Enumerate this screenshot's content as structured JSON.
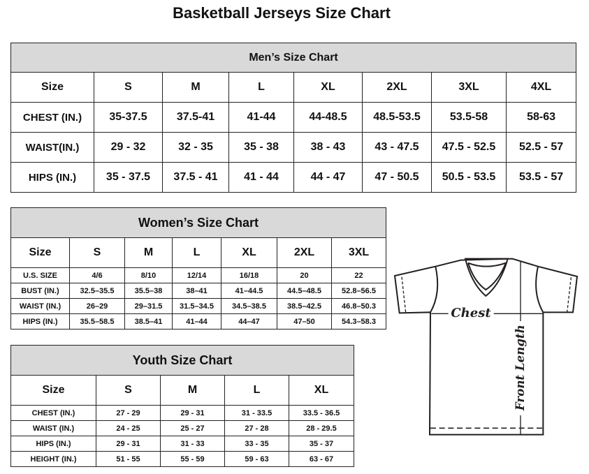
{
  "title": "Basketball Jerseys Size Chart",
  "mens": {
    "heading": "Men’s Size Chart",
    "columns": [
      "Size",
      "S",
      "M",
      "L",
      "XL",
      "2XL",
      "3XL",
      "4XL"
    ],
    "rows": [
      [
        "CHEST (IN.)",
        "35-37.5",
        "37.5-41",
        "41-44",
        "44-48.5",
        "48.5-53.5",
        "53.5-58",
        "58-63"
      ],
      [
        "WAIST(IN.)",
        "29 - 32",
        "32 - 35",
        "35 - 38",
        "38 - 43",
        "43 - 47.5",
        "47.5 - 52.5",
        "52.5 - 57"
      ],
      [
        "HIPS (IN.)",
        "35 - 37.5",
        "37.5 - 41",
        "41 - 44",
        "44 - 47",
        "47 - 50.5",
        "50.5 - 53.5",
        "53.5 - 57"
      ]
    ]
  },
  "womens": {
    "heading": "Women’s Size Chart",
    "columns": [
      "Size",
      "S",
      "M",
      "L",
      "XL",
      "2XL",
      "3XL"
    ],
    "rows": [
      [
        "U.S. SIZE",
        "4/6",
        "8/10",
        "12/14",
        "16/18",
        "20",
        "22"
      ],
      [
        "BUST (IN.)",
        "32.5–35.5",
        "35.5–38",
        "38–41",
        "41–44.5",
        "44.5–48.5",
        "52.8–56.5"
      ],
      [
        "WAIST (IN.)",
        "26–29",
        "29–31.5",
        "31.5–34.5",
        "34.5–38.5",
        "38.5–42.5",
        "46.8–50.3"
      ],
      [
        "HIPS (IN.)",
        "35.5–58.5",
        "38.5–41",
        "41–44",
        "44–47",
        "47–50",
        "54.3–58.3"
      ]
    ]
  },
  "youth": {
    "heading": "Youth Size Chart",
    "columns": [
      "Size",
      "S",
      "M",
      "L",
      "XL"
    ],
    "rows": [
      [
        "CHEST (IN.)",
        "27 - 29",
        "29 - 31",
        "31 - 33.5",
        "33.5 - 36.5"
      ],
      [
        "WAIST (IN.)",
        "24 - 25",
        "25 - 27",
        "27 - 28",
        "28 - 29.5"
      ],
      [
        "HIPS (IN.)",
        "29 - 31",
        "31 - 33",
        "33 - 35",
        "35 - 37"
      ],
      [
        "HEIGHT (IN.)",
        "51 - 55",
        "55 - 59",
        "59 - 63",
        "63 - 67"
      ]
    ]
  },
  "diagram": {
    "chest_label": "Chest",
    "length_label": "Front Length"
  },
  "colors": {
    "header_bg": "#d9d9d9",
    "line": "#231f20"
  }
}
